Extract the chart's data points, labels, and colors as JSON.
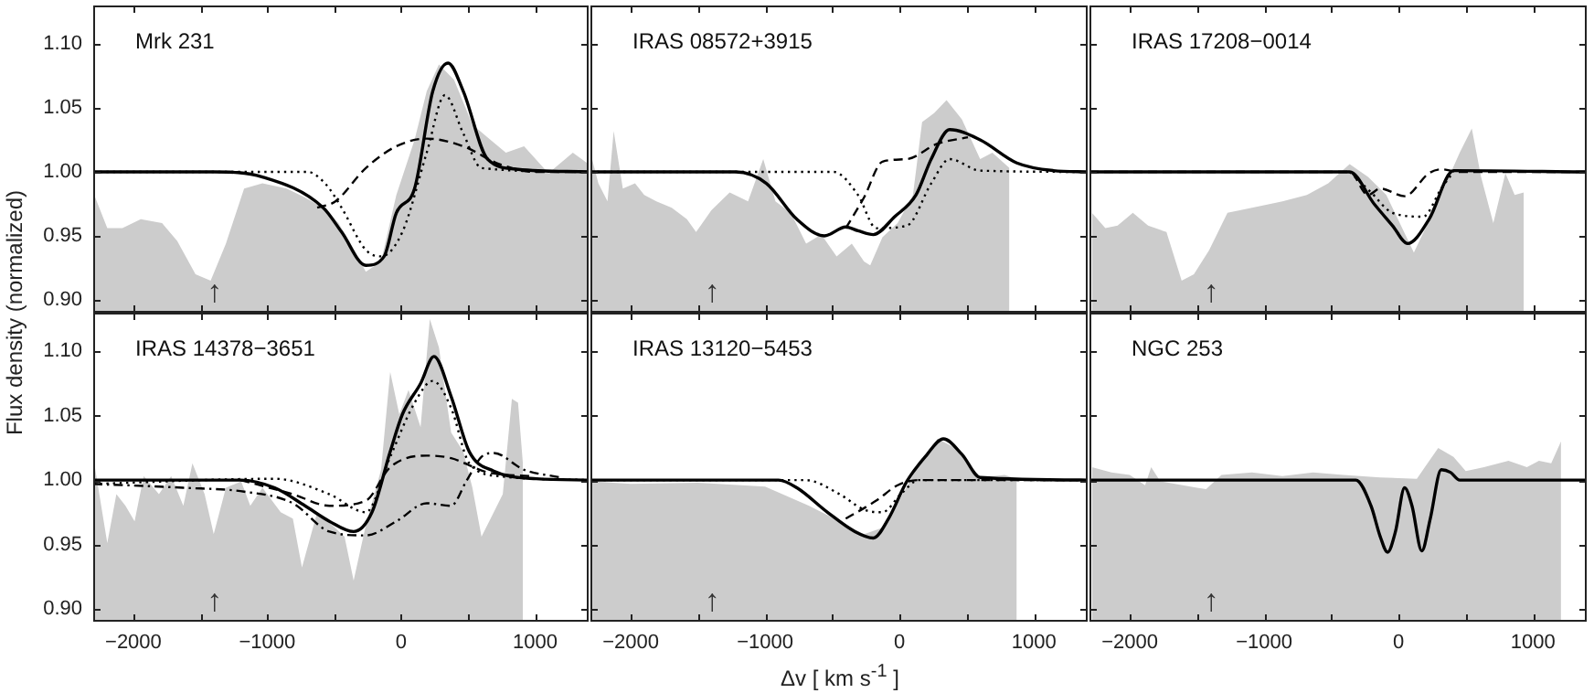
{
  "chart_data": [
    {
      "type": "line",
      "title": "Mrk 231",
      "ylabel": "Flux density (normalized)",
      "xlim": [
        -2300,
        1400
      ],
      "xticks": [
        -2000,
        {
          "value": -1500,
          "label": null
        },
        -1000,
        {
          "value": -500,
          "label": null
        },
        0,
        {
          "value": 500,
          "label": null
        },
        1000
      ],
      "ylim": [
        0.89,
        1.13
      ],
      "yticks": [
        {
          "value": 0.9,
          "label": "0.90"
        },
        {
          "value": 0.95,
          "label": "0.95"
        },
        {
          "value": 1.0,
          "label": "1.00"
        },
        {
          "value": 1.05,
          "label": "1.05"
        },
        {
          "value": 1.1,
          "label": "1.10"
        }
      ],
      "tick_labels": "y",
      "annotations": [
        "↑"
      ],
      "series": [
        {
          "type": "area",
          "color": "#cccccc",
          "x": [
            -2300,
            -2195,
            -2082,
            -1945,
            -1786,
            -1673,
            -1536,
            -1423,
            -1309,
            -1173,
            -1036,
            -855,
            -718,
            -582,
            -468,
            -377,
            -264,
            -150,
            -36,
            100,
            191,
            282,
            395,
            532,
            645,
            782,
            918,
            1100,
            1282,
            1400
          ],
          "values": [
            0.984,
            0.956,
            0.956,
            0.963,
            0.96,
            0.946,
            0.92,
            0.915,
            0.944,
            0.987,
            0.991,
            0.987,
            0.98,
            0.972,
            0.96,
            0.944,
            0.922,
            0.93,
            0.982,
            1.025,
            1.063,
            1.084,
            1.072,
            1.037,
            1.027,
            1.015,
            1.02,
            0.999,
            1.015,
            1.006
          ]
        },
        {
          "color": "#000000",
          "line_style": "solid",
          "x": [
            -2300,
            -1400,
            -1036,
            -582,
            -445,
            -264,
            -127,
            -36,
            100,
            236,
            350,
            464,
            645,
            873,
            1400
          ],
          "values": [
            1,
            1,
            0.996,
            0.972,
            0.953,
            0.927,
            0.934,
            0.968,
            0.987,
            1.063,
            1.085,
            1.063,
            1.01,
            1.002,
            1
          ]
        },
        {
          "color": "#000000",
          "line_style": "dotted",
          "x": [
            -2300,
            -700,
            -560,
            -445,
            -264,
            -150,
            9,
            191,
            327,
            464,
            600,
            1400
          ],
          "values": [
            1,
            1,
            0.99,
            0.972,
            0.939,
            0.934,
            0.953,
            1.015,
            1.06,
            1.03,
            1.003,
            1
          ]
        },
        {
          "color": "#000000",
          "line_style": "dashed",
          "x": [
            -627,
            -491,
            -264,
            -36,
            191,
            464,
            736,
            1000,
            1400
          ],
          "values": [
            0.972,
            0.977,
            1.003,
            1.02,
            1.026,
            1.02,
            1.006,
            1.0,
            1.0
          ]
        }
      ]
    },
    {
      "type": "line",
      "title": "IRAS 08572+3915",
      "xlim": [
        -2300,
        1400
      ],
      "xticks": [
        -2000,
        -1500,
        -1000,
        -500,
        0,
        500,
        1000
      ],
      "ylim": [
        0.89,
        1.13
      ],
      "yticks": [
        0.9,
        0.95,
        1.0,
        1.05,
        1.1
      ],
      "tick_labels": false,
      "annotations": [
        "↑"
      ],
      "series": [
        {
          "type": "area",
          "color": "#cccccc",
          "x": [
            -2300,
            -2241,
            -2173,
            -2127,
            -2059,
            -1968,
            -1900,
            -1809,
            -1695,
            -1582,
            -1514,
            -1400,
            -1264,
            -1127,
            -1014,
            -923,
            -809,
            -695,
            -582,
            -468,
            -355,
            -264,
            -218,
            -127,
            -14,
            100,
            168,
            259,
            350,
            464,
            600,
            691,
            818
          ],
          "values": [
            1.015,
            0.991,
            0.977,
            1.032,
            0.987,
            0.991,
            0.982,
            0.977,
            0.972,
            0.963,
            0.953,
            0.97,
            0.984,
            0.977,
            1.01,
            0.977,
            0.968,
            0.944,
            0.951,
            0.934,
            0.944,
            0.93,
            0.927,
            0.949,
            0.96,
            0.982,
            1.039,
            1.046,
            1.056,
            1.041,
            1.01,
            1.015,
            1.003
          ]
        },
        {
          "color": "#000000",
          "line_style": "solid",
          "x": [
            -2300,
            -1218,
            -991,
            -764,
            -559,
            -400,
            -309,
            -195,
            -36,
            123,
            236,
            373,
            600,
            873,
            1145,
            1400
          ],
          "values": [
            1,
            1,
            0.991,
            0.963,
            0.95,
            0.957,
            0.954,
            0.951,
            0.965,
            0.982,
            1.01,
            1.033,
            1.025,
            1.007,
            1.001,
            1
          ]
        },
        {
          "color": "#000000",
          "line_style": "dotted",
          "x": [
            -2300,
            -491,
            -309,
            -173,
            55,
            236,
            373,
            600,
            1400
          ],
          "values": [
            1,
            1,
            0.982,
            0.956,
            0.958,
            0.991,
            1.01,
            1.001,
            1
          ]
        },
        {
          "color": "#000000",
          "line_style": "dashed",
          "x": [
            -400,
            -264,
            -127,
            55,
            282,
            509
          ],
          "values": [
            0.956,
            0.98,
            1.008,
            1.01,
            1.022,
            1.027
          ]
        }
      ]
    },
    {
      "type": "line",
      "title": "IRAS 17208−0014",
      "xlim": [
        -2300,
        1400
      ],
      "xticks": [
        -2000,
        -1500,
        -1000,
        -500,
        0,
        500,
        1000
      ],
      "ylim": [
        0.89,
        1.13
      ],
      "yticks": [
        0.9,
        0.95,
        1.0,
        1.05,
        1.1
      ],
      "tick_labels": false,
      "annotations": [
        "↑"
      ],
      "series": [
        {
          "type": "area",
          "color": "#cccccc",
          "x": [
            -2282,
            -2182,
            -2091,
            -1977,
            -1864,
            -1727,
            -1614,
            -1523,
            -1409,
            -1273,
            -1091,
            -864,
            -682,
            -523,
            -364,
            -227,
            -91,
            114,
            273,
            455,
            545,
            614,
            705,
            795,
            864,
            932
          ],
          "values": [
            0.968,
            0.956,
            0.958,
            0.968,
            0.958,
            0.953,
            0.915,
            0.92,
            0.939,
            0.968,
            0.972,
            0.977,
            0.982,
            0.991,
            1.006,
            0.996,
            0.982,
            0.937,
            0.972,
            1.015,
            1.034,
            0.996,
            0.96,
            0.999,
            0.982,
            0.984
          ]
        },
        {
          "color": "#000000",
          "line_style": "solid",
          "x": [
            -2300,
            -364,
            -182,
            -45,
            68,
            227,
            409,
            1400
          ],
          "values": [
            1,
            1,
            0.975,
            0.958,
            0.944,
            0.963,
            1.001,
            1
          ]
        },
        {
          "color": "#000000",
          "line_style": "dotted",
          "x": [
            -364,
            -205,
            -45,
            182,
            318,
            409
          ],
          "values": [
            1,
            0.984,
            0.968,
            0.965,
            0.987,
            1
          ]
        },
        {
          "color": "#000000",
          "line_style": "dashed",
          "x": [
            -2300,
            -364,
            -227,
            -136,
            45,
            227,
            318,
            455,
            1400
          ],
          "values": [
            1,
            1,
            0.982,
            0.987,
            0.981,
            0.999,
            1.002,
            1,
            1
          ]
        }
      ]
    },
    {
      "type": "line",
      "title": "IRAS 14378−3651",
      "xlim": [
        -2300,
        1400
      ],
      "xticks": [
        -2000,
        {
          "value": -1500,
          "label": null
        },
        -1000,
        {
          "value": -500,
          "label": null
        },
        0,
        {
          "value": 500,
          "label": null
        },
        1000
      ],
      "ylim": [
        0.89,
        1.13
      ],
      "yticks": [
        {
          "value": 0.9,
          "label": "0.90"
        },
        {
          "value": 0.95,
          "label": "0.95"
        },
        {
          "value": 1.0,
          "label": "1.00"
        },
        {
          "value": 1.05,
          "label": "1.05"
        },
        {
          "value": 1.1,
          "label": "1.10"
        }
      ],
      "annotations": [
        "↑"
      ],
      "series": [
        {
          "type": "area",
          "color": "#cccccc",
          "x": [
            -2300,
            -2195,
            -2127,
            -2059,
            -1991,
            -1923,
            -1809,
            -1718,
            -1627,
            -1559,
            -1468,
            -1400,
            -1309,
            -1195,
            -1127,
            -1036,
            -900,
            -809,
            -741,
            -627,
            -514,
            -423,
            -355,
            -264,
            -150,
            -82,
            -14,
            55,
            145,
            214,
            282,
            373,
            464,
            532,
            600,
            668,
            759,
            827,
            873,
            909
          ],
          "values": [
            1.018,
            0.951,
            0.989,
            0.98,
            0.968,
            1.003,
            0.989,
            1.003,
            0.98,
            1.013,
            0.989,
            0.958,
            0.994,
            0.999,
            0.98,
            0.994,
            0.975,
            0.97,
            0.932,
            0.975,
            0.965,
            0.956,
            0.922,
            0.965,
            1.008,
            1.084,
            1.051,
            1.07,
            1.041,
            1.125,
            1.103,
            1.037,
            1.022,
            0.994,
            0.956,
            0.97,
            0.989,
            1.063,
            1.06,
            1.013
          ]
        },
        {
          "color": "#000000",
          "line_style": "solid",
          "x": [
            -2300,
            -1200,
            -945,
            -718,
            -536,
            -355,
            -218,
            -82,
            9,
            145,
            245,
            373,
            509,
            691,
            1009,
            1400
          ],
          "values": [
            1,
            1,
            0.994,
            0.98,
            0.968,
            0.96,
            0.975,
            1.022,
            1.051,
            1.075,
            1.096,
            1.065,
            1.022,
            1.007,
            1.001,
            1
          ]
        },
        {
          "color": "#000000",
          "line_style": "dotted",
          "x": [
            -2300,
            -945,
            -536,
            -264,
            -82,
            100,
            236,
            373,
            509,
            736,
            1400
          ],
          "values": [
            0.997,
            1.001,
            0.989,
            0.975,
            1.018,
            1.06,
            1.077,
            1.056,
            1.013,
            1.003,
            1
          ]
        },
        {
          "color": "#000000",
          "line_style": "dashed",
          "x": [
            -1200,
            -809,
            -536,
            -264,
            -82,
            191,
            373,
            645,
            964
          ],
          "values": [
            1,
            0.989,
            0.98,
            0.984,
            1.01,
            1.019,
            1.017,
            1.006,
            1.003
          ]
        },
        {
          "color": "#000000",
          "line_style": "dashdot",
          "x": [
            -2300,
            -1627,
            -1173,
            -809,
            -536,
            -264,
            -36,
            191,
            373,
            486,
            600,
            691,
            918,
            1191
          ],
          "values": [
            0.997,
            0.994,
            0.991,
            0.982,
            0.96,
            0.957,
            0.968,
            0.982,
            0.98,
            0.999,
            1.018,
            1.021,
            1.008,
            1.002
          ]
        }
      ]
    },
    {
      "type": "line",
      "title": "IRAS 13120−5453",
      "xlabel": "Δv [ km s$^{-1}$ ]",
      "xlim": [
        -2300,
        1400
      ],
      "xticks": [
        -2000,
        {
          "value": -1500,
          "label": null
        },
        -1000,
        {
          "value": -500,
          "label": null
        },
        0,
        {
          "value": 500,
          "label": null
        },
        1000
      ],
      "ylim": [
        0.89,
        1.13
      ],
      "yticks": [
        0.9,
        0.95,
        1.0,
        1.05,
        1.1
      ],
      "tick_labels": "x",
      "annotations": [
        "↑"
      ],
      "series": [
        {
          "type": "area",
          "color": "#cccccc",
          "x": [
            -2286,
            -2000,
            -1500,
            -1000,
            -673,
            -445,
            -264,
            -127,
            -14,
            123,
            282,
            418,
            600,
            782,
            873
          ],
          "values": [
            0.999,
            0.997,
            0.998,
            0.995,
            0.98,
            0.968,
            0.958,
            0.963,
            0.982,
            1.008,
            1.032,
            1.025,
            1.002,
            1.004,
            1.001
          ]
        },
        {
          "color": "#000000",
          "line_style": "solid",
          "x": [
            -2300,
            -900,
            -764,
            -536,
            -332,
            -195,
            -82,
            55,
            191,
            327,
            464,
            600,
            1400
          ],
          "values": [
            1,
            1,
            0.994,
            0.975,
            0.96,
            0.955,
            0.97,
            0.999,
            1.018,
            1.032,
            1.02,
            1.002,
            1
          ]
        },
        {
          "color": "#000000",
          "line_style": "dotted",
          "x": [
            -2300,
            -700,
            -445,
            -264,
            -127,
            9,
            145,
            1400
          ],
          "values": [
            1,
            1,
            0.989,
            0.977,
            0.975,
            0.989,
            1,
            1
          ]
        },
        {
          "color": "#000000",
          "line_style": "dashed",
          "x": [
            -400,
            -173,
            -14,
            145,
            1400
          ],
          "values": [
            0.97,
            0.984,
            0.996,
            1,
            1
          ]
        }
      ]
    },
    {
      "type": "line",
      "title": "NGC 253",
      "xlim": [
        -2300,
        1400
      ],
      "xticks": [
        -2000,
        {
          "value": -1500,
          "label": null
        },
        -1000,
        {
          "value": -500,
          "label": null
        },
        0,
        {
          "value": 500,
          "label": null
        },
        1000
      ],
      "ylim": [
        0.89,
        1.13
      ],
      "yticks": [
        0.9,
        0.95,
        1.0,
        1.05,
        1.1
      ],
      "tick_labels": "x",
      "annotations": [
        "↑"
      ],
      "series": [
        {
          "type": "area",
          "color": "#cccccc",
          "x": [
            -2282,
            -2136,
            -2000,
            -1886,
            -1841,
            -1773,
            -1500,
            -1432,
            -1318,
            -1091,
            -864,
            -636,
            -409,
            -136,
            136,
            295,
            409,
            500,
            636,
            818,
            955,
            1045,
            1136,
            1209
          ],
          "values": [
            1.01,
            1.006,
            1.004,
            0.996,
            1.01,
            0.999,
            0.994,
            0.993,
            1.004,
            1.006,
            1.003,
            1.006,
            1.004,
            1.002,
            1.001,
            1.025,
            1.018,
            1.007,
            1.01,
            1.015,
            1.01,
            1.015,
            1.013,
            1.03
          ]
        },
        {
          "color": "#000000",
          "line_style": "solid",
          "x": [
            -2300,
            -318,
            -205,
            -136,
            -82,
            -23,
            45,
            100,
            173,
            236,
            318,
            386,
            455,
            1400
          ],
          "values": [
            1,
            1,
            0.98,
            0.956,
            0.944,
            0.96,
            0.994,
            0.98,
            0.945,
            0.97,
            1.008,
            1.006,
            1,
            1
          ]
        }
      ]
    }
  ]
}
